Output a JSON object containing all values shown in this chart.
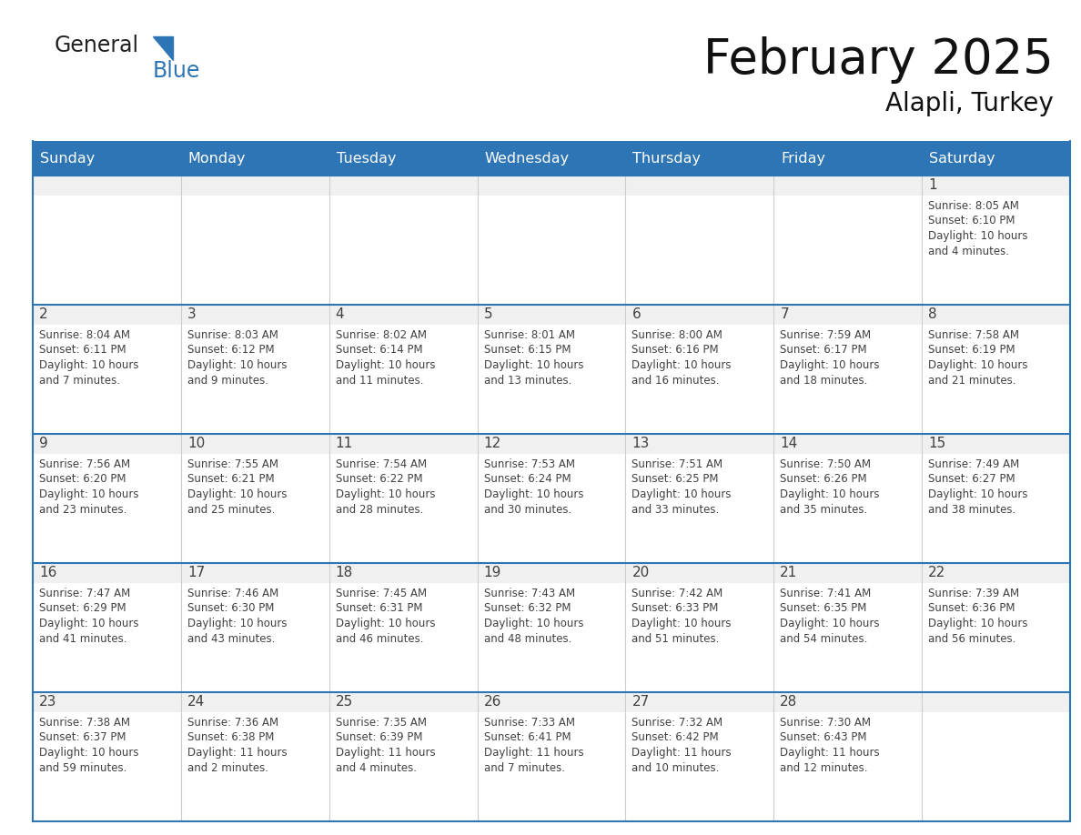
{
  "title": "February 2025",
  "subtitle": "Alapli, Turkey",
  "header_color": "#2E75B6",
  "header_text_color": "#FFFFFF",
  "cell_bg_light": "#F0F0F0",
  "cell_bg_white": "#FFFFFF",
  "border_color": "#2E75B6",
  "grid_color": "#CCCCCC",
  "text_color": "#404040",
  "day_headers": [
    "Sunday",
    "Monday",
    "Tuesday",
    "Wednesday",
    "Thursday",
    "Friday",
    "Saturday"
  ],
  "logo_general_color": "#222222",
  "logo_blue_color": "#2E75B6",
  "weeks": [
    [
      {
        "day": "",
        "info": ""
      },
      {
        "day": "",
        "info": ""
      },
      {
        "day": "",
        "info": ""
      },
      {
        "day": "",
        "info": ""
      },
      {
        "day": "",
        "info": ""
      },
      {
        "day": "",
        "info": ""
      },
      {
        "day": "1",
        "info": "Sunrise: 8:05 AM\nSunset: 6:10 PM\nDaylight: 10 hours\nand 4 minutes."
      }
    ],
    [
      {
        "day": "2",
        "info": "Sunrise: 8:04 AM\nSunset: 6:11 PM\nDaylight: 10 hours\nand 7 minutes."
      },
      {
        "day": "3",
        "info": "Sunrise: 8:03 AM\nSunset: 6:12 PM\nDaylight: 10 hours\nand 9 minutes."
      },
      {
        "day": "4",
        "info": "Sunrise: 8:02 AM\nSunset: 6:14 PM\nDaylight: 10 hours\nand 11 minutes."
      },
      {
        "day": "5",
        "info": "Sunrise: 8:01 AM\nSunset: 6:15 PM\nDaylight: 10 hours\nand 13 minutes."
      },
      {
        "day": "6",
        "info": "Sunrise: 8:00 AM\nSunset: 6:16 PM\nDaylight: 10 hours\nand 16 minutes."
      },
      {
        "day": "7",
        "info": "Sunrise: 7:59 AM\nSunset: 6:17 PM\nDaylight: 10 hours\nand 18 minutes."
      },
      {
        "day": "8",
        "info": "Sunrise: 7:58 AM\nSunset: 6:19 PM\nDaylight: 10 hours\nand 21 minutes."
      }
    ],
    [
      {
        "day": "9",
        "info": "Sunrise: 7:56 AM\nSunset: 6:20 PM\nDaylight: 10 hours\nand 23 minutes."
      },
      {
        "day": "10",
        "info": "Sunrise: 7:55 AM\nSunset: 6:21 PM\nDaylight: 10 hours\nand 25 minutes."
      },
      {
        "day": "11",
        "info": "Sunrise: 7:54 AM\nSunset: 6:22 PM\nDaylight: 10 hours\nand 28 minutes."
      },
      {
        "day": "12",
        "info": "Sunrise: 7:53 AM\nSunset: 6:24 PM\nDaylight: 10 hours\nand 30 minutes."
      },
      {
        "day": "13",
        "info": "Sunrise: 7:51 AM\nSunset: 6:25 PM\nDaylight: 10 hours\nand 33 minutes."
      },
      {
        "day": "14",
        "info": "Sunrise: 7:50 AM\nSunset: 6:26 PM\nDaylight: 10 hours\nand 35 minutes."
      },
      {
        "day": "15",
        "info": "Sunrise: 7:49 AM\nSunset: 6:27 PM\nDaylight: 10 hours\nand 38 minutes."
      }
    ],
    [
      {
        "day": "16",
        "info": "Sunrise: 7:47 AM\nSunset: 6:29 PM\nDaylight: 10 hours\nand 41 minutes."
      },
      {
        "day": "17",
        "info": "Sunrise: 7:46 AM\nSunset: 6:30 PM\nDaylight: 10 hours\nand 43 minutes."
      },
      {
        "day": "18",
        "info": "Sunrise: 7:45 AM\nSunset: 6:31 PM\nDaylight: 10 hours\nand 46 minutes."
      },
      {
        "day": "19",
        "info": "Sunrise: 7:43 AM\nSunset: 6:32 PM\nDaylight: 10 hours\nand 48 minutes."
      },
      {
        "day": "20",
        "info": "Sunrise: 7:42 AM\nSunset: 6:33 PM\nDaylight: 10 hours\nand 51 minutes."
      },
      {
        "day": "21",
        "info": "Sunrise: 7:41 AM\nSunset: 6:35 PM\nDaylight: 10 hours\nand 54 minutes."
      },
      {
        "day": "22",
        "info": "Sunrise: 7:39 AM\nSunset: 6:36 PM\nDaylight: 10 hours\nand 56 minutes."
      }
    ],
    [
      {
        "day": "23",
        "info": "Sunrise: 7:38 AM\nSunset: 6:37 PM\nDaylight: 10 hours\nand 59 minutes."
      },
      {
        "day": "24",
        "info": "Sunrise: 7:36 AM\nSunset: 6:38 PM\nDaylight: 11 hours\nand 2 minutes."
      },
      {
        "day": "25",
        "info": "Sunrise: 7:35 AM\nSunset: 6:39 PM\nDaylight: 11 hours\nand 4 minutes."
      },
      {
        "day": "26",
        "info": "Sunrise: 7:33 AM\nSunset: 6:41 PM\nDaylight: 11 hours\nand 7 minutes."
      },
      {
        "day": "27",
        "info": "Sunrise: 7:32 AM\nSunset: 6:42 PM\nDaylight: 11 hours\nand 10 minutes."
      },
      {
        "day": "28",
        "info": "Sunrise: 7:30 AM\nSunset: 6:43 PM\nDaylight: 11 hours\nand 12 minutes."
      },
      {
        "day": "",
        "info": ""
      }
    ]
  ]
}
